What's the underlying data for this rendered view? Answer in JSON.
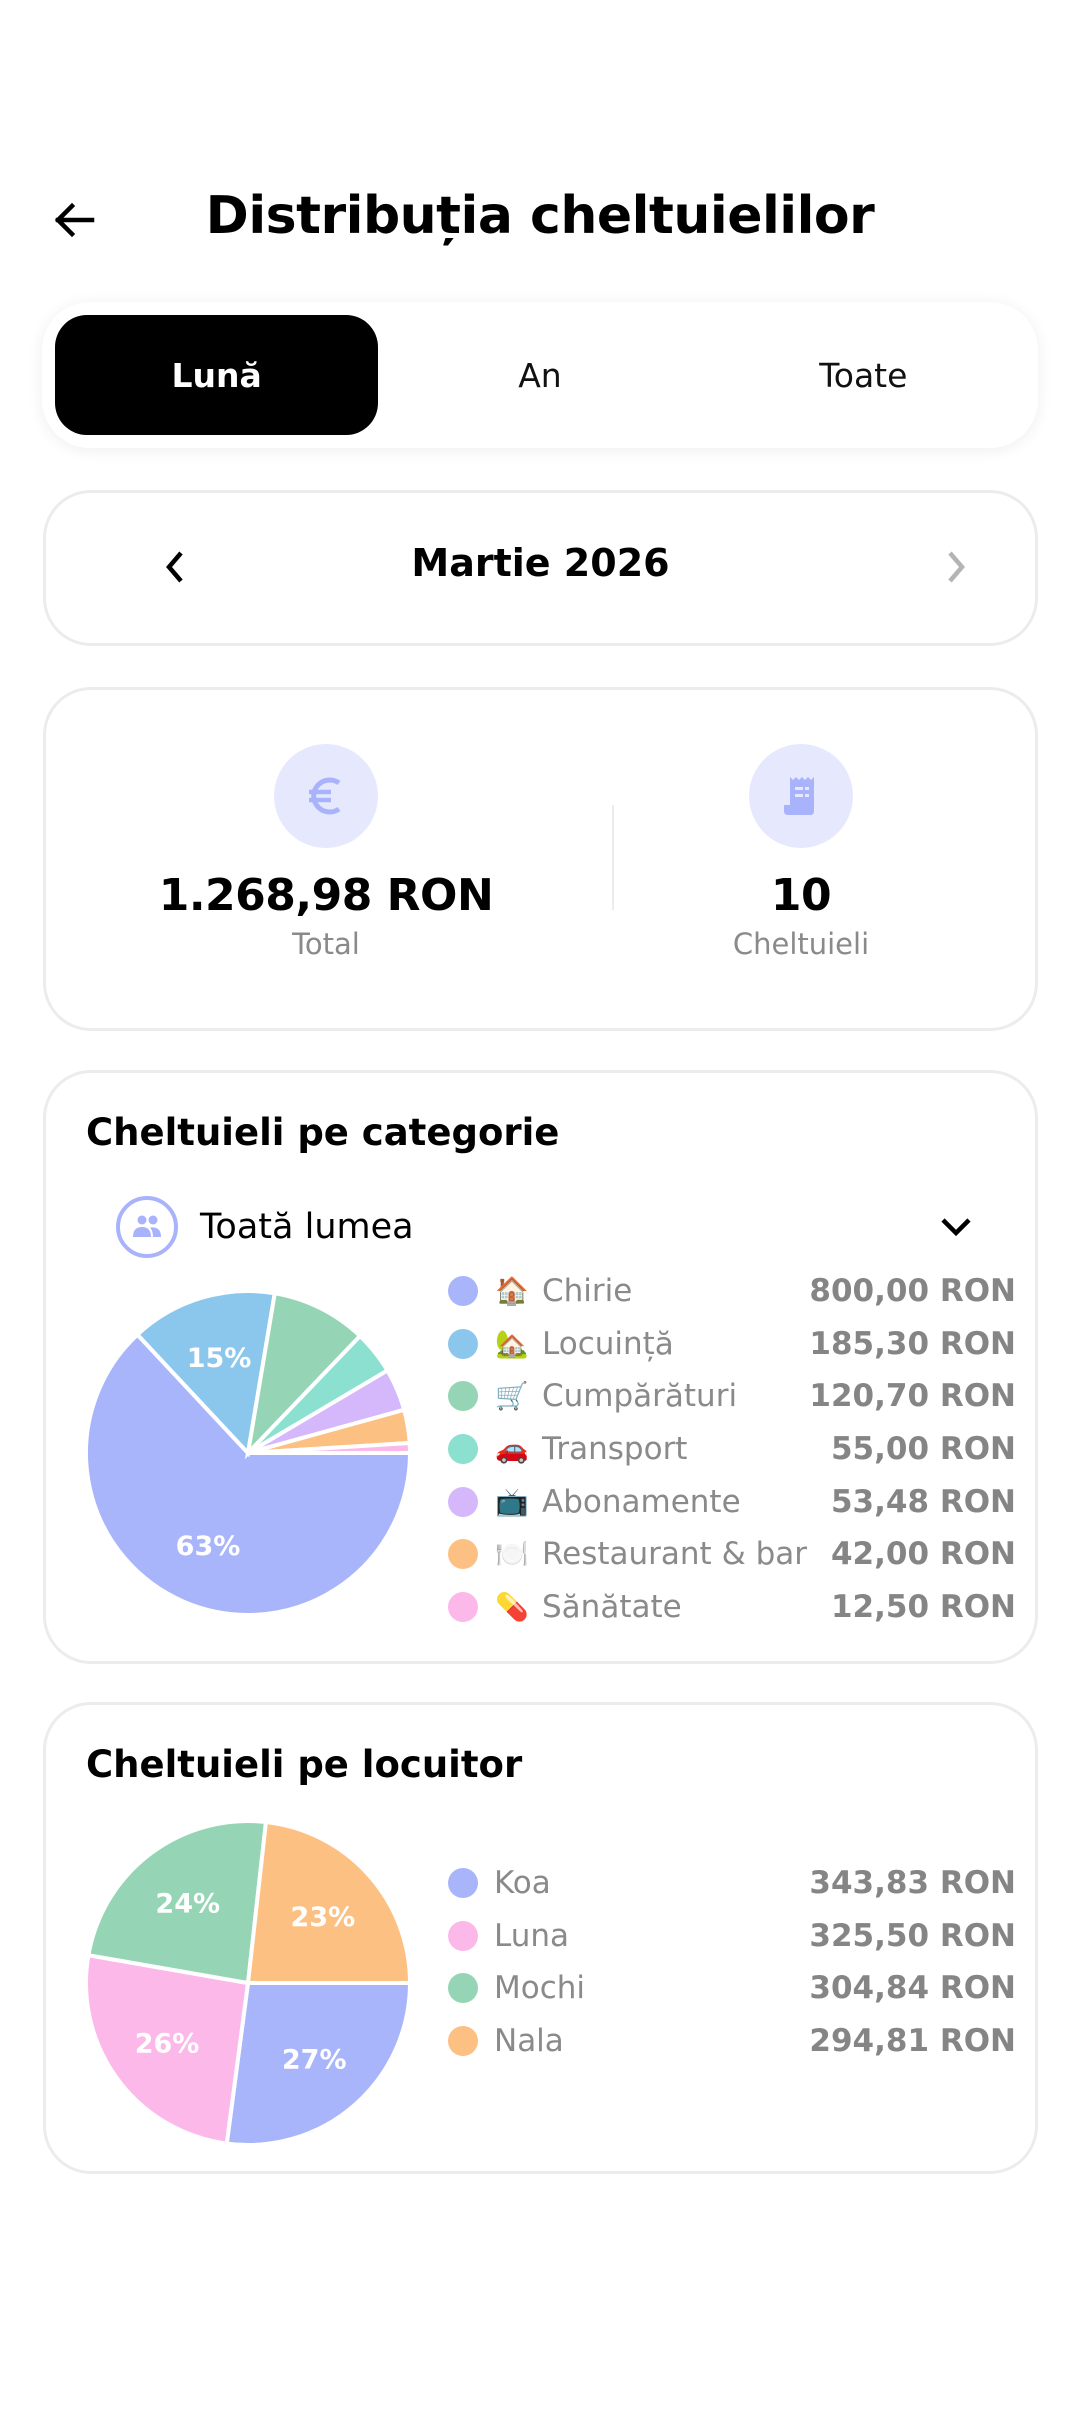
{
  "header": {
    "title": "Distribuția cheltuielilor",
    "back_icon": "arrow-left-icon"
  },
  "period_tabs": [
    {
      "label": "Lună",
      "active": true
    },
    {
      "label": "An",
      "active": false
    },
    {
      "label": "Toate",
      "active": false
    }
  ],
  "month_nav": {
    "label": "Martie 2026",
    "prev_icon": "chevron-left-icon",
    "next_icon": "chevron-right-icon",
    "next_disabled": true
  },
  "summary": {
    "total": {
      "value": "1.268,98 RON",
      "label": "Total",
      "icon": "euro-icon"
    },
    "count": {
      "value": "10",
      "label": "Cheltuieli",
      "icon": "receipt-icon"
    }
  },
  "category_section": {
    "title": "Cheltuieli pe categorie",
    "filter": {
      "label": "Toată lumea",
      "icon": "people-icon",
      "chevron": "chevron-down-icon"
    }
  },
  "resident_section": {
    "title": "Cheltuieli pe locuitor"
  },
  "colors": {
    "accent_light": "#e6e9fd",
    "accent": "#a9b3fb",
    "card_border": "#ececec",
    "muted_text": "#8a8a8a"
  },
  "chart_data": [
    {
      "type": "pie",
      "title": "Cheltuieli pe categorie",
      "start_angle_deg": 0,
      "direction": "clockwise",
      "categories": [
        "Chirie",
        "Locuință",
        "Cumpărături",
        "Transport",
        "Abonamente",
        "Restaurant & bar",
        "Sănătate"
      ],
      "emojis": [
        "🏠",
        "🏡",
        "🛒",
        "🚗",
        "📺",
        "🍽️",
        "💊"
      ],
      "values": [
        800.0,
        185.3,
        120.7,
        55.0,
        53.48,
        42.0,
        12.5
      ],
      "value_labels": [
        "800,00 RON",
        "185,30 RON",
        "120,70 RON",
        "55,00 RON",
        "53,48 RON",
        "42,00 RON",
        "12,50 RON"
      ],
      "colors": [
        "#a9b5fb",
        "#8bc6ec",
        "#95d5b5",
        "#8be0d0",
        "#d4b8fb",
        "#fdc083",
        "#fdb8ea"
      ],
      "slice_labels": [
        "63%",
        "15%",
        "",
        "",
        "",
        "",
        ""
      ],
      "legend_position": "right"
    },
    {
      "type": "pie",
      "title": "Cheltuieli pe locuitor",
      "start_angle_deg": 0,
      "direction": "clockwise",
      "categories": [
        "Koa",
        "Luna",
        "Mochi",
        "Nala"
      ],
      "values": [
        343.83,
        325.5,
        304.84,
        294.81
      ],
      "value_labels": [
        "343,83 RON",
        "325,50 RON",
        "304,84 RON",
        "294,81 RON"
      ],
      "colors": [
        "#a9b5fb",
        "#fdb8ea",
        "#95d5b5",
        "#fdc083"
      ],
      "slice_labels": [
        "27%",
        "26%",
        "24%",
        "23%"
      ],
      "legend_position": "right"
    }
  ]
}
